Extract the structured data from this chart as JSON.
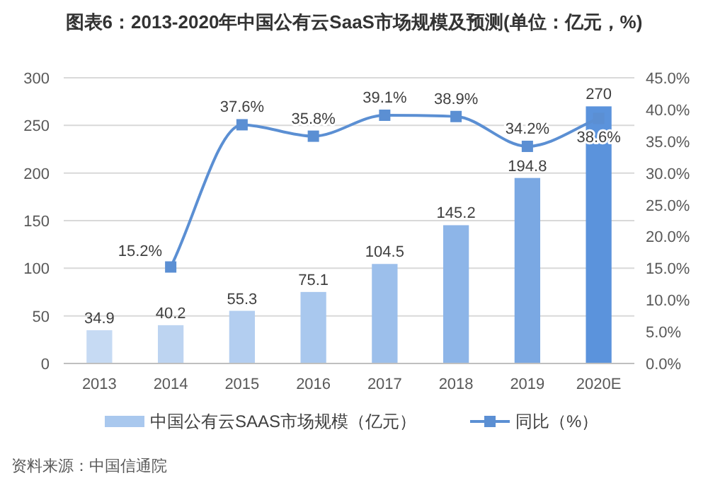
{
  "chart_data": {
    "type": "bar",
    "title": "图表6：2013-2020年中国公有云SaaS市场规模及预测(单位：亿元，%)",
    "categories": [
      "2013",
      "2014",
      "2015",
      "2016",
      "2017",
      "2018",
      "2019",
      "2020E"
    ],
    "series": [
      {
        "name": "中国公有云SAAS市场规模（亿元）",
        "color": "#a9c8ee",
        "colors": [
          "#c6daf3",
          "#bdd4f1",
          "#b3cef0",
          "#a9c8ee",
          "#9cbfeb",
          "#8db5e8",
          "#7aa8e3",
          "#5b93dc"
        ],
        "values": [
          34.9,
          40.2,
          55.3,
          75.1,
          104.5,
          145.2,
          194.8,
          270
        ],
        "value_labels": [
          "34.9",
          "40.2",
          "55.3",
          "75.1",
          "104.5",
          "145.2",
          "194.8",
          "270"
        ]
      },
      {
        "name": "同比（%）",
        "type": "line",
        "axis": "y2",
        "color": "#5b8fd3",
        "marker": "square",
        "values": [
          null,
          15.2,
          37.6,
          35.8,
          39.1,
          38.9,
          34.2,
          38.6
        ],
        "value_labels": [
          null,
          "15.2%",
          "37.6%",
          "35.8%",
          "39.1%",
          "38.9%",
          "34.2%",
          "38.6%"
        ]
      }
    ],
    "ylim": [
      0,
      300
    ],
    "yticks": [
      0,
      50,
      100,
      150,
      200,
      250,
      300
    ],
    "y2lim": [
      0,
      45
    ],
    "y2ticks": [
      {
        "value": 0,
        "label": "0.0%"
      },
      {
        "value": 5,
        "label": "5.0%"
      },
      {
        "value": 10,
        "label": "10.0%"
      },
      {
        "value": 15,
        "label": "15.0%"
      },
      {
        "value": 20,
        "label": "20.0%"
      },
      {
        "value": 25,
        "label": "25.0%"
      },
      {
        "value": 30,
        "label": "30.0%"
      },
      {
        "value": 35,
        "label": "35.0%"
      },
      {
        "value": 40,
        "label": "40.0%"
      },
      {
        "value": 45,
        "label": "45.0%"
      }
    ],
    "grid": "y",
    "legend": "bottom",
    "annotations": [
      "资料来源：中国信通院"
    ]
  }
}
